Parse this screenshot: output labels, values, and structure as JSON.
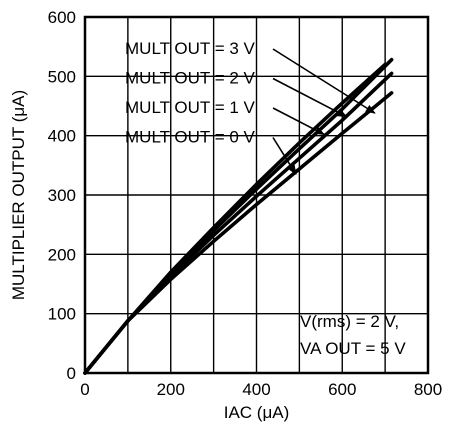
{
  "chart_data": {
    "type": "line",
    "xlabel": "IAC (μA)",
    "ylabel": "MULTIPLIER OUTPUT (μA)",
    "xlim": [
      0,
      800
    ],
    "ylim": [
      0,
      600
    ],
    "xticks": [
      0,
      200,
      400,
      600,
      800
    ],
    "yticks": [
      0,
      100,
      200,
      300,
      400,
      500,
      600
    ],
    "grid": true,
    "series": [
      {
        "name": "MULT OUT = 3 V",
        "x": [
          0,
          100,
          200,
          300,
          400,
          500,
          600,
          700
        ],
        "y": [
          0,
          88,
          170,
          245,
          318,
          388,
          455,
          520
        ]
      },
      {
        "name": "MULT OUT = 2 V",
        "x": [
          0,
          100,
          200,
          300,
          400,
          500,
          600,
          715
        ],
        "y": [
          0,
          88,
          167,
          240,
          310,
          378,
          445,
          528
        ]
      },
      {
        "name": "MULT OUT = 1 V",
        "x": [
          0,
          100,
          200,
          300,
          400,
          500,
          600,
          715
        ],
        "y": [
          0,
          88,
          163,
          232,
          298,
          362,
          426,
          505
        ]
      },
      {
        "name": "MULT OUT = 0 V",
        "x": [
          0,
          100,
          200,
          300,
          400,
          500,
          600,
          715
        ],
        "y": [
          0,
          88,
          158,
          222,
          284,
          344,
          404,
          472
        ]
      }
    ],
    "annotations": [
      {
        "text": "MULT OUT = 3 V",
        "series_index": 0,
        "arrow_to_x": 676,
        "arrow_to_y": 438
      },
      {
        "text": "MULT OUT = 2 V",
        "series_index": 1,
        "arrow_to_x": 610,
        "arrow_to_y": 432
      },
      {
        "text": "MULT OUT = 1 V",
        "series_index": 2,
        "arrow_to_x": 558,
        "arrow_to_y": 402
      },
      {
        "text": "MULT OUT = 0 V",
        "series_index": 3,
        "arrow_to_x": 492,
        "arrow_to_y": 335
      }
    ],
    "note_lines": [
      "V(rms) = 2 V,",
      "VA OUT = 5 V"
    ]
  }
}
